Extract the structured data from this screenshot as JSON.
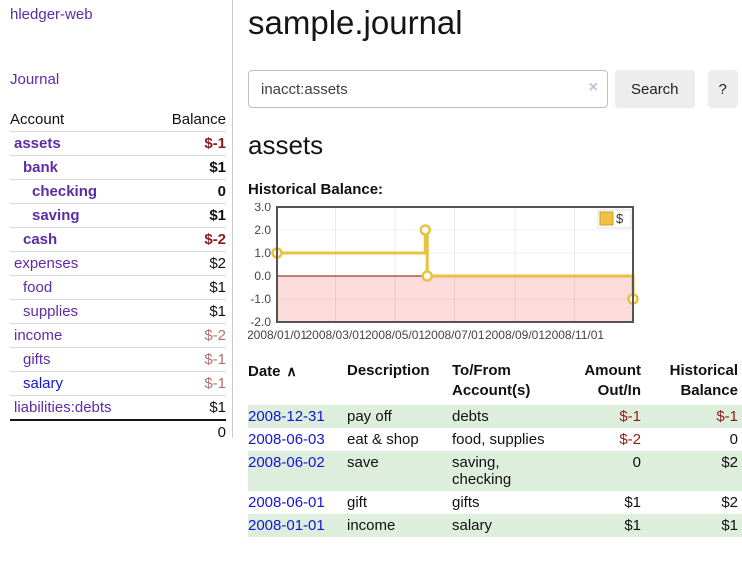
{
  "sidebar": {
    "brand": "hledger-web",
    "journal_label": "Journal",
    "headers": {
      "account": "Account",
      "balance": "Balance"
    },
    "accounts": [
      {
        "name": "assets",
        "balance": "$-1",
        "level": 0,
        "bold": true,
        "negative": true,
        "blue": false
      },
      {
        "name": "bank",
        "balance": "$1",
        "level": 1,
        "bold": true,
        "negative": false,
        "blue": false
      },
      {
        "name": "checking",
        "balance": "0",
        "level": 2,
        "bold": true,
        "negative": false,
        "blue": false
      },
      {
        "name": "saving",
        "balance": "$1",
        "level": 2,
        "bold": true,
        "negative": false,
        "blue": false
      },
      {
        "name": "cash",
        "balance": "$-2",
        "level": 1,
        "bold": true,
        "negative": true,
        "blue": false
      },
      {
        "name": "expenses",
        "balance": "$2",
        "level": 0,
        "bold": false,
        "negative": false,
        "blue": false
      },
      {
        "name": "food",
        "balance": "$1",
        "level": 1,
        "bold": false,
        "negative": false,
        "blue": false
      },
      {
        "name": "supplies",
        "balance": "$1",
        "level": 1,
        "bold": false,
        "negative": false,
        "blue": false
      },
      {
        "name": "income",
        "balance": "$-2",
        "level": 0,
        "bold": false,
        "negative": true,
        "blue": false
      },
      {
        "name": "gifts",
        "balance": "$-1",
        "level": 1,
        "bold": false,
        "negative": true,
        "blue": false
      },
      {
        "name": "salary",
        "balance": "$-1",
        "level": 1,
        "bold": false,
        "negative": true,
        "blue": true
      },
      {
        "name": "liabilities:debts",
        "balance": "$1",
        "level": 0,
        "bold": false,
        "negative": false,
        "blue": false
      }
    ],
    "total": "0"
  },
  "header": {
    "title": "sample.journal"
  },
  "search": {
    "value": "inacct:assets",
    "clear_icon": "×",
    "button_label": "Search",
    "help_label": "?"
  },
  "register": {
    "heading": "assets",
    "chart_label": "Historical Balance:"
  },
  "chart_data": {
    "type": "line",
    "step": true,
    "title": "Historical Balance",
    "series": [
      {
        "name": "$",
        "points": [
          {
            "date": "2008-01-01",
            "value": 1
          },
          {
            "date": "2008-06-01",
            "value": 2
          },
          {
            "date": "2008-06-03",
            "value": 0
          },
          {
            "date": "2008-12-31",
            "value": -1
          }
        ]
      }
    ],
    "xlim": [
      "2008-01-01",
      "2008-12-31"
    ],
    "ylim": [
      -2,
      3
    ],
    "ytick_labels": [
      "3.0",
      "2.0",
      "1.0",
      "0.0",
      "-1.0",
      "-2.0"
    ],
    "xtick_labels": [
      "2008/01/01",
      "2008/03/01",
      "2008/05/01",
      "2008/07/01",
      "2008/09/01",
      "2008/11/01"
    ],
    "legend": {
      "label": "$",
      "position": "top-right"
    },
    "grid": true,
    "colors": {
      "line": "#e9c240",
      "marker_fill": "#ffffff",
      "legend_square": "#edc240",
      "legend_square_border": "#c9a227",
      "negative_region": "#fbdbdb",
      "zero_line": "#7d0d0d",
      "plot_border": "#545454",
      "tick_text": "#444444"
    }
  },
  "table": {
    "headers": {
      "date": "Date",
      "sort_icon": "∧",
      "description": "Description",
      "account": "To/From Account(s)",
      "amount": "Amount Out/In",
      "balance": "Historical Balance"
    },
    "rows": [
      {
        "date": "2008-12-31",
        "description": "pay off",
        "account": "debts",
        "amount": "$-1",
        "amount_neg": true,
        "balance": "$-1",
        "balance_neg": true
      },
      {
        "date": "2008-06-03",
        "description": "eat & shop",
        "account": "food, supplies",
        "amount": "$-2",
        "amount_neg": true,
        "balance": "0",
        "balance_neg": false
      },
      {
        "date": "2008-06-02",
        "description": "save",
        "account": "saving, checking",
        "amount": "0",
        "amount_neg": false,
        "balance": "$2",
        "balance_neg": false
      },
      {
        "date": "2008-06-01",
        "description": "gift",
        "account": "gifts",
        "amount": "$1",
        "amount_neg": false,
        "balance": "$2",
        "balance_neg": false
      },
      {
        "date": "2008-01-01",
        "description": "income",
        "account": "salary",
        "amount": "$1",
        "amount_neg": false,
        "balance": "$1",
        "balance_neg": false
      }
    ]
  }
}
